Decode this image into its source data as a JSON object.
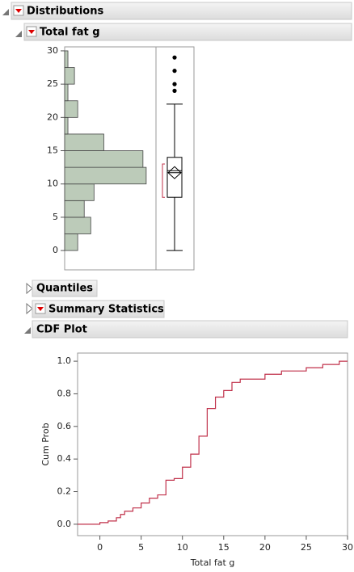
{
  "panels": {
    "distributions": "Distributions",
    "variable": "Total fat g",
    "quantiles": "Quantiles",
    "summary": "Summary Statistics",
    "cdf": "CDF Plot"
  },
  "chart_data": [
    {
      "type": "histogram",
      "orientation": "horizontal",
      "bins": [
        0,
        2.5,
        5,
        7.5,
        10,
        12.5,
        15,
        17.5,
        20,
        22.5,
        25,
        27.5,
        30
      ],
      "counts": [
        4,
        8,
        6,
        9,
        25,
        24,
        12,
        1,
        4,
        1,
        3,
        1
      ],
      "color": "#bccbb9",
      "xlim": [
        0,
        28
      ],
      "ylim": [
        -2.9,
        30.6
      ],
      "yticks": [
        0,
        5,
        10,
        15,
        20,
        25,
        30
      ]
    },
    {
      "type": "box",
      "min": 0,
      "q1": 8,
      "median": 12,
      "q3": 14,
      "max": 22,
      "mean": 11.7,
      "ci": [
        10.8,
        12.6
      ],
      "shortest_half": [
        8,
        13
      ],
      "outliers": [
        24,
        25,
        27,
        29
      ],
      "ylim": [
        -2.9,
        30.6
      ]
    },
    {
      "type": "step",
      "xlabel": "Total fat g",
      "ylabel": "Cum Prob",
      "color": "#c0304a",
      "x": [
        -2.7,
        0,
        1,
        2,
        2.5,
        3,
        4,
        5,
        6,
        7,
        8,
        9,
        10,
        11,
        12,
        13,
        14,
        15,
        16,
        17,
        20,
        22,
        25,
        27,
        29,
        30
      ],
      "values": [
        0,
        0.01,
        0.02,
        0.04,
        0.06,
        0.08,
        0.1,
        0.13,
        0.16,
        0.18,
        0.27,
        0.28,
        0.35,
        0.43,
        0.54,
        0.71,
        0.78,
        0.82,
        0.87,
        0.89,
        0.92,
        0.94,
        0.96,
        0.98,
        1.0,
        1.0
      ],
      "xlim": [
        -2.7,
        30
      ],
      "ylim": [
        -0.07,
        1.05
      ],
      "xticks": [
        0,
        5,
        10,
        15,
        20,
        25,
        30
      ],
      "yticks": [
        {
          "value": 0,
          "label": "0.0"
        },
        {
          "value": 0.2,
          "label": "0.2"
        },
        {
          "value": 0.4,
          "label": "0.4"
        },
        {
          "value": 0.6,
          "label": "0.6"
        },
        {
          "value": 0.8,
          "label": "0.8"
        },
        {
          "value": 1,
          "label": "1.0"
        }
      ]
    }
  ]
}
